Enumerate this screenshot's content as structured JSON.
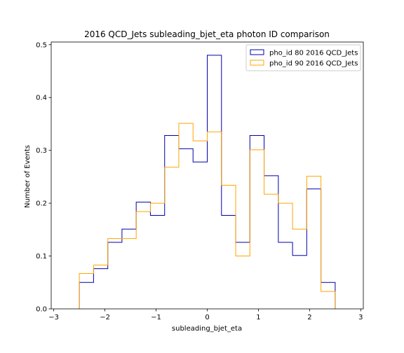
{
  "chart_data": {
    "type": "step-histogram",
    "title": "2016 QCD_Jets subleading_bjet_eta photon ID comparison",
    "xlabel": "subleading_bjet_eta",
    "ylabel": "Number of Events",
    "xlim": [
      -3.05,
      3.05
    ],
    "ylim": [
      0,
      0.505
    ],
    "xticks": [
      -3,
      -2,
      -1,
      0,
      1,
      2,
      3
    ],
    "yticks": [
      0.0,
      0.1,
      0.2,
      0.3,
      0.4,
      0.5
    ],
    "xtick_labels": [
      "−3",
      "−2",
      "−1",
      "0",
      "1",
      "2",
      "3"
    ],
    "ytick_labels": [
      "0.0",
      "0.1",
      "0.2",
      "0.3",
      "0.4",
      "0.5"
    ],
    "bin_edges": [
      -2.5,
      -2.222,
      -1.944,
      -1.667,
      -1.389,
      -1.111,
      -0.833,
      -0.556,
      -0.278,
      0.0,
      0.278,
      0.556,
      0.833,
      1.111,
      1.389,
      1.667,
      1.944,
      2.222,
      2.5
    ],
    "legend_position": "top-right",
    "series": [
      {
        "name": "pho_id 80 2016 QCD_Jets",
        "color": "#0000aa",
        "values": [
          0.05,
          0.076,
          0.126,
          0.151,
          0.202,
          0.177,
          0.328,
          0.303,
          0.278,
          0.48,
          0.177,
          0.126,
          0.328,
          0.252,
          0.126,
          0.101,
          0.227,
          0.05
        ]
      },
      {
        "name": "pho_id 90 2016 QCD_Jets",
        "color": "#ffa500",
        "values": [
          0.067,
          0.083,
          0.133,
          0.133,
          0.184,
          0.2,
          0.268,
          0.351,
          0.318,
          0.335,
          0.234,
          0.1,
          0.301,
          0.217,
          0.2,
          0.151,
          0.251,
          0.033
        ]
      }
    ],
    "grid": false
  }
}
